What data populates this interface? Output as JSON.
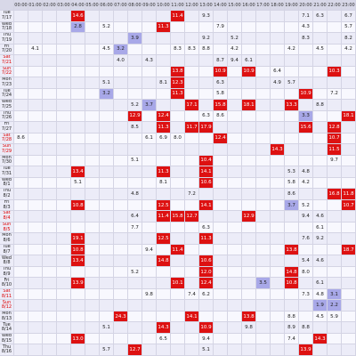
{
  "hours": [
    "00:00",
    "01:00",
    "02:00",
    "03:00",
    "04:00",
    "05:00",
    "06:00",
    "07:00",
    "08:00",
    "09:00",
    "10:00",
    "11:00",
    "12:00",
    "13:00",
    "14:00",
    "15:00",
    "16:00",
    "17:00",
    "18:00",
    "19:00",
    "20:00",
    "21:00",
    "22:00",
    "23:00"
  ],
  "color_scale": {
    "high_from": 10,
    "high_color": "#dd1111",
    "low_below": 4,
    "low_color": "#a8a8e8",
    "row_colors": [
      "#ececf8",
      "#f8f8fe"
    ]
  },
  "rows": [
    {
      "day": "Tue",
      "date": "7/17",
      "weekend": false,
      "cells": [
        null,
        null,
        null,
        null,
        "14.6",
        null,
        null,
        null,
        null,
        null,
        null,
        "11.4",
        null,
        "9.3",
        null,
        null,
        null,
        null,
        null,
        null,
        "7.1",
        "6.3",
        null,
        "6.7"
      ]
    },
    {
      "day": "Wed",
      "date": "7/18",
      "weekend": false,
      "cells": [
        null,
        null,
        null,
        null,
        "2.8",
        null,
        "5.2",
        null,
        null,
        null,
        "11.3",
        null,
        null,
        null,
        "7.9",
        null,
        null,
        null,
        null,
        null,
        "4.3",
        null,
        null,
        "5.7"
      ]
    },
    {
      "day": "Thu",
      "date": "7/19",
      "weekend": false,
      "cells": [
        null,
        null,
        null,
        null,
        null,
        null,
        null,
        null,
        "3.9",
        null,
        null,
        null,
        null,
        "9.2",
        null,
        "5.2",
        null,
        null,
        null,
        null,
        "8.3",
        null,
        null,
        "8.2"
      ]
    },
    {
      "day": "Fri",
      "date": "7/20",
      "weekend": false,
      "cells": [
        null,
        "4.1",
        null,
        null,
        null,
        null,
        "4.5",
        "3.2",
        null,
        null,
        null,
        "8.3",
        "8.3",
        "8.8",
        null,
        "4.2",
        null,
        null,
        null,
        "4.2",
        null,
        "4.5",
        null,
        "4.2"
      ]
    },
    {
      "day": "Sat",
      "date": "7/21",
      "weekend": true,
      "cells": [
        null,
        null,
        null,
        null,
        null,
        null,
        null,
        "4.0",
        null,
        "4.3",
        null,
        null,
        null,
        null,
        "8.7",
        "9.4",
        "6.1",
        null,
        null,
        null,
        null,
        null,
        null,
        null
      ]
    },
    {
      "day": "Sun",
      "date": "7/22",
      "weekend": true,
      "cells": [
        null,
        null,
        null,
        null,
        null,
        null,
        null,
        null,
        null,
        null,
        null,
        "13.8",
        null,
        null,
        "10.9",
        null,
        "10.9",
        null,
        "6.4",
        null,
        null,
        null,
        "10.3",
        null
      ]
    },
    {
      "day": "Mon",
      "date": "7/23",
      "weekend": false,
      "cells": [
        null,
        null,
        null,
        null,
        null,
        null,
        "5.1",
        null,
        null,
        null,
        "8.1",
        "12.3",
        null,
        null,
        "6.3",
        null,
        null,
        null,
        "4.9",
        "5.7",
        null,
        null,
        null,
        null
      ]
    },
    {
      "day": "Tue",
      "date": "7/24",
      "weekend": false,
      "cells": [
        null,
        null,
        null,
        null,
        null,
        null,
        "3.2",
        null,
        null,
        null,
        null,
        "11.3",
        null,
        null,
        "5.8",
        null,
        null,
        null,
        null,
        null,
        "10.9",
        null,
        "7.2",
        null
      ]
    },
    {
      "day": "Wed",
      "date": "7/25",
      "weekend": false,
      "cells": [
        null,
        null,
        null,
        null,
        null,
        null,
        null,
        null,
        "5.2",
        "3.7",
        null,
        null,
        "17.1",
        null,
        "15.8",
        null,
        "18.1",
        null,
        null,
        "13.3",
        null,
        "8.8",
        null,
        null
      ]
    },
    {
      "day": "Thu",
      "date": "7/26",
      "weekend": false,
      "cells": [
        null,
        null,
        null,
        null,
        null,
        null,
        null,
        null,
        "12.9",
        null,
        "12.4",
        null,
        null,
        "6.3",
        "8.6",
        null,
        null,
        null,
        null,
        null,
        "3.3",
        null,
        null,
        "18.1"
      ]
    },
    {
      "day": "Fri",
      "date": "7/27",
      "weekend": false,
      "cells": [
        null,
        null,
        null,
        null,
        null,
        null,
        null,
        null,
        "8.5",
        null,
        "11.3",
        null,
        "11.7",
        "17.9",
        null,
        null,
        null,
        null,
        null,
        null,
        "15.6",
        null,
        "12.8",
        null
      ]
    },
    {
      "day": "Sat",
      "date": "7/28",
      "weekend": true,
      "cells": [
        "8.6",
        null,
        null,
        null,
        null,
        null,
        null,
        null,
        null,
        "6.1",
        "6.9",
        "8.0",
        null,
        null,
        "12.4",
        null,
        null,
        null,
        null,
        null,
        null,
        null,
        "10.7",
        null
      ]
    },
    {
      "day": "Sun",
      "date": "7/29",
      "weekend": true,
      "cells": [
        null,
        null,
        null,
        null,
        null,
        null,
        null,
        null,
        null,
        null,
        null,
        null,
        null,
        null,
        null,
        null,
        null,
        null,
        "14.3",
        null,
        null,
        null,
        "11.5",
        null
      ]
    },
    {
      "day": "Mon",
      "date": "7/30",
      "weekend": false,
      "cells": [
        null,
        null,
        null,
        null,
        null,
        null,
        null,
        null,
        "5.1",
        null,
        null,
        null,
        null,
        "10.4",
        null,
        null,
        null,
        null,
        null,
        null,
        null,
        null,
        "9.7",
        null
      ]
    },
    {
      "day": "Tue",
      "date": "7/31",
      "weekend": false,
      "cells": [
        null,
        null,
        null,
        null,
        "13.4",
        null,
        null,
        null,
        null,
        null,
        "11.3",
        null,
        null,
        "14.1",
        null,
        null,
        null,
        null,
        null,
        "5.3",
        "4.8",
        null,
        null,
        null
      ]
    },
    {
      "day": "Wed",
      "date": "8/1",
      "weekend": false,
      "cells": [
        null,
        null,
        null,
        null,
        "5.1",
        null,
        null,
        null,
        null,
        null,
        "8.1",
        null,
        null,
        "10.6",
        null,
        null,
        null,
        null,
        null,
        "5.8",
        "4.2",
        null,
        null,
        null
      ]
    },
    {
      "day": "Thu",
      "date": "8/2",
      "weekend": false,
      "cells": [
        null,
        null,
        null,
        null,
        null,
        null,
        null,
        null,
        "4.8",
        null,
        null,
        null,
        "7.2",
        null,
        null,
        null,
        null,
        null,
        null,
        "8.6",
        null,
        null,
        "16.8",
        "11.8"
      ]
    },
    {
      "day": "Fri",
      "date": "8/3",
      "weekend": false,
      "cells": [
        null,
        null,
        null,
        null,
        "10.8",
        null,
        null,
        null,
        null,
        null,
        "12.5",
        null,
        null,
        "14.1",
        null,
        null,
        null,
        null,
        null,
        "3.7",
        "5.2",
        null,
        null,
        "10.7"
      ]
    },
    {
      "day": "Sat",
      "date": "8/4",
      "weekend": true,
      "cells": [
        null,
        null,
        null,
        null,
        null,
        null,
        null,
        null,
        "6.4",
        null,
        "11.4",
        "15.8",
        "12.7",
        null,
        null,
        null,
        "12.9",
        null,
        null,
        null,
        "9.4",
        "4.6",
        null,
        null
      ]
    },
    {
      "day": "Sun",
      "date": "8/5",
      "weekend": true,
      "cells": [
        null,
        null,
        null,
        null,
        null,
        null,
        null,
        null,
        "7.7",
        null,
        null,
        null,
        null,
        "6.3",
        null,
        null,
        null,
        null,
        null,
        null,
        null,
        "6.1",
        null,
        null
      ]
    },
    {
      "day": "Mon",
      "date": "8/6",
      "weekend": false,
      "cells": [
        null,
        null,
        null,
        null,
        "19.1",
        null,
        null,
        null,
        null,
        null,
        "12.5",
        null,
        null,
        "11.3",
        null,
        null,
        null,
        null,
        null,
        null,
        "7.6",
        "9.2",
        null,
        null
      ]
    },
    {
      "day": "Tue",
      "date": "8/7",
      "weekend": false,
      "cells": [
        null,
        null,
        null,
        null,
        "10.8",
        null,
        null,
        null,
        null,
        "9.4",
        null,
        "11.4",
        null,
        null,
        null,
        null,
        null,
        null,
        null,
        "13.8",
        null,
        null,
        null,
        "18.7"
      ]
    },
    {
      "day": "Wed",
      "date": "8/8",
      "weekend": false,
      "cells": [
        null,
        null,
        null,
        null,
        "13.4",
        null,
        null,
        null,
        null,
        null,
        "14.8",
        null,
        null,
        "10.6",
        null,
        null,
        null,
        null,
        null,
        null,
        "5.4",
        "4.6",
        null,
        null
      ]
    },
    {
      "day": "Thu",
      "date": "8/9",
      "weekend": false,
      "cells": [
        null,
        null,
        null,
        null,
        null,
        null,
        null,
        null,
        "5.2",
        null,
        null,
        null,
        null,
        "12.0",
        null,
        null,
        null,
        null,
        null,
        "14.8",
        "8.0",
        null,
        null,
        null
      ]
    },
    {
      "day": "Fri",
      "date": "8/10",
      "weekend": false,
      "cells": [
        null,
        null,
        null,
        null,
        "13.9",
        null,
        null,
        null,
        null,
        null,
        null,
        "10.1",
        null,
        "12.4",
        null,
        null,
        null,
        "3.5",
        null,
        "10.8",
        null,
        "6.1",
        null,
        null
      ]
    },
    {
      "day": "Sat",
      "date": "8/11",
      "weekend": true,
      "cells": [
        null,
        null,
        null,
        null,
        null,
        null,
        null,
        null,
        null,
        "9.8",
        null,
        null,
        "7.4",
        "6.2",
        null,
        null,
        null,
        null,
        null,
        null,
        "7.3",
        "4.8",
        "3.1",
        null
      ]
    },
    {
      "day": "Sun",
      "date": "8/12",
      "weekend": true,
      "cells": [
        null,
        null,
        null,
        null,
        null,
        null,
        null,
        null,
        null,
        null,
        null,
        null,
        null,
        null,
        null,
        null,
        null,
        null,
        null,
        null,
        null,
        "1.9",
        "2.2",
        null
      ]
    },
    {
      "day": "Mon",
      "date": "8/13",
      "weekend": false,
      "cells": [
        null,
        null,
        null,
        null,
        null,
        null,
        null,
        "24.3",
        null,
        null,
        null,
        null,
        "14.1",
        null,
        null,
        null,
        "13.8",
        null,
        null,
        "8.8",
        null,
        "4.5",
        "5.9",
        null
      ]
    },
    {
      "day": "Tue",
      "date": "8/14",
      "weekend": false,
      "cells": [
        null,
        null,
        null,
        null,
        null,
        null,
        "5.1",
        null,
        null,
        null,
        "14.3",
        null,
        null,
        "10.9",
        null,
        null,
        "9.8",
        null,
        null,
        "8.9",
        "8.8",
        null,
        null,
        null
      ]
    },
    {
      "day": "Wed",
      "date": "8/15",
      "weekend": false,
      "cells": [
        null,
        null,
        null,
        null,
        "13.0",
        null,
        null,
        null,
        null,
        null,
        "6.5",
        null,
        null,
        "9.4",
        null,
        null,
        null,
        null,
        null,
        "7.4",
        null,
        "14.3",
        null,
        null
      ]
    },
    {
      "day": "Thu",
      "date": "8/16",
      "weekend": false,
      "cells": [
        null,
        null,
        null,
        null,
        null,
        null,
        "5.7",
        null,
        "12.7",
        null,
        null,
        null,
        null,
        "5.1",
        null,
        null,
        null,
        null,
        null,
        null,
        "13.9",
        null,
        null,
        null
      ]
    }
  ]
}
